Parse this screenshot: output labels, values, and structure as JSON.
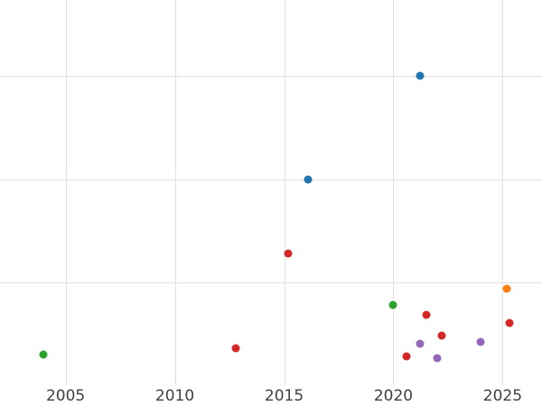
{
  "chart_data": {
    "type": "scatter",
    "title": "",
    "xlabel": "",
    "ylabel": "",
    "grid": true,
    "legend": "none",
    "xlim": [
      2002.0,
      2026.8
    ],
    "ylim": [
      0,
      18.7
    ],
    "x_ticks": [
      2005,
      2010,
      2015,
      2020,
      2025
    ],
    "y_gridline_values": [
      5,
      10,
      15
    ],
    "series": [
      {
        "name": "blue",
        "color": "#1f77b4",
        "points": [
          [
            2016.1,
            10.0
          ],
          [
            2021.2,
            15.0
          ]
        ]
      },
      {
        "name": "orange",
        "color": "#ff7f0e",
        "points": [
          [
            2025.2,
            4.7
          ]
        ]
      },
      {
        "name": "green",
        "color": "#2ca02c",
        "points": [
          [
            2004.0,
            1.5
          ],
          [
            2020.0,
            3.9
          ]
        ]
      },
      {
        "name": "red",
        "color": "#d62728",
        "points": [
          [
            2012.8,
            1.8
          ],
          [
            2015.2,
            6.4
          ],
          [
            2020.6,
            1.4
          ],
          [
            2021.5,
            3.4
          ],
          [
            2022.2,
            2.4
          ],
          [
            2025.3,
            3.0
          ]
        ]
      },
      {
        "name": "purple",
        "color": "#9467bd",
        "points": [
          [
            2021.2,
            2.0
          ],
          [
            2022.0,
            1.3
          ],
          [
            2024.0,
            2.1
          ]
        ]
      }
    ]
  }
}
